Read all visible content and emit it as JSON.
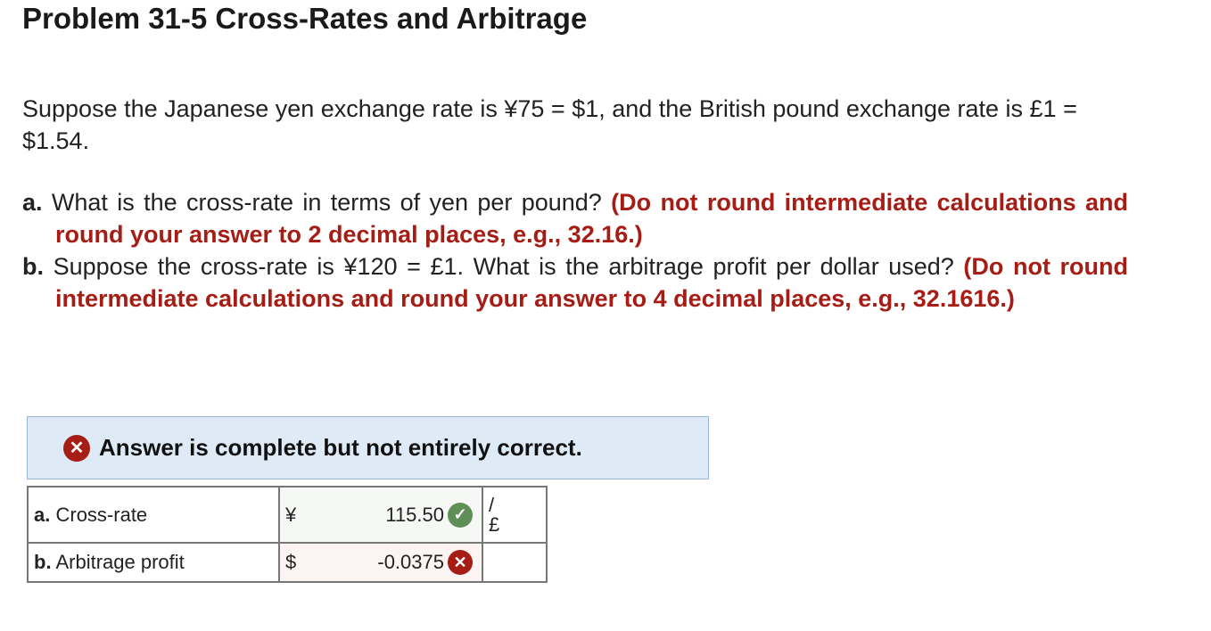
{
  "title": "Problem 31-5 Cross-Rates and Arbitrage",
  "intro": "Suppose the Japanese yen exchange rate is ¥75 = $1, and the British pound exchange rate is £1 = $1.54.",
  "parts": [
    {
      "letter": "a.",
      "question": "What is the cross-rate in terms of yen per pound?",
      "instruction": "(Do not round intermediate calculations and round your answer to 2 decimal places, e.g., 32.16.)"
    },
    {
      "letter": "b.",
      "question": "Suppose the cross-rate is ¥120 = £1. What is the arbitrage profit per dollar used?",
      "instruction": "(Do not round intermediate calculations and round your answer to 4 decimal places, e.g., 32.1616.)"
    }
  ],
  "banner": {
    "icon": "x-circle-icon",
    "text": "Answer is complete but not entirely correct."
  },
  "answers": [
    {
      "letter": "a.",
      "label": "Cross-rate",
      "currency": "¥",
      "value": "115.50",
      "status": "correct",
      "unit_line1": "/",
      "unit_line2": "£"
    },
    {
      "letter": "b.",
      "label": "Arbitrage profit",
      "currency": "$",
      "value": "-0.0375",
      "status": "incorrect",
      "unit_line1": "",
      "unit_line2": ""
    }
  ],
  "colors": {
    "correct": "#5f8f57",
    "incorrect": "#a51d14",
    "banner_bg": "#deebf7"
  }
}
